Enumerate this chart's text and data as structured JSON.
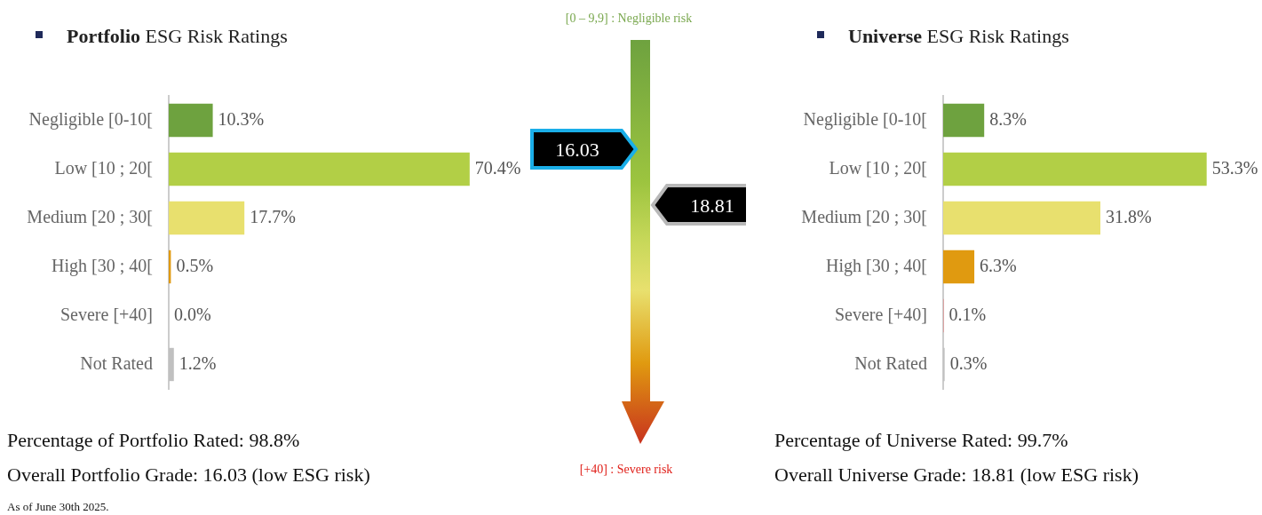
{
  "chart_data": [
    {
      "type": "bar",
      "orientation": "horizontal",
      "title": "Portfolio ESG Risk Ratings",
      "categories": [
        "Negligible [0-10[",
        "Low [10 ; 20[",
        "Medium [20 ; 30[",
        "High [30 ; 40[",
        "Severe [+40]",
        "Not Rated"
      ],
      "values": [
        10.3,
        70.4,
        17.7,
        0.5,
        0.0,
        1.2
      ],
      "value_labels": [
        "10.3%",
        "70.4%",
        "17.7%",
        "0.5%",
        "0.0%",
        "1.2%"
      ],
      "colors": [
        "#6ea23f",
        "#b2cf46",
        "#e8e06e",
        "#e09a10",
        "#e88080",
        "#c0c0c0"
      ],
      "annotations": [
        "Percentage of Portfolio Rated: 98.8%",
        "Overall Portfolio Grade: 16.03 (low ESG risk)",
        "As of June 30th 2025."
      ]
    },
    {
      "type": "other",
      "annotations": [
        "[0 – 9,9] : Negligible risk",
        "16.03",
        "18.81",
        "[+40] : Severe risk"
      ]
    },
    {
      "type": "bar",
      "orientation": "horizontal",
      "title": "Universe ESG Risk Ratings",
      "categories": [
        "Negligible [0-10[",
        "Low [10 ; 20[",
        "Medium [20 ; 30[",
        "High [30 ; 40[",
        "Severe [+40]",
        "Not Rated"
      ],
      "values": [
        8.3,
        53.3,
        31.8,
        6.3,
        0.1,
        0.3
      ],
      "value_labels": [
        "8.3%",
        "53.3%",
        "31.8%",
        "6.3%",
        "0.1%",
        "0.3%"
      ],
      "colors": [
        "#6ea23f",
        "#b2cf46",
        "#e8e06e",
        "#e09a10",
        "#e88080",
        "#c0c0c0"
      ],
      "annotations": [
        "Percentage of Universe Rated: 99.7%",
        "Overall Universe Grade: 18.81 (low ESG risk)"
      ]
    }
  ]
}
